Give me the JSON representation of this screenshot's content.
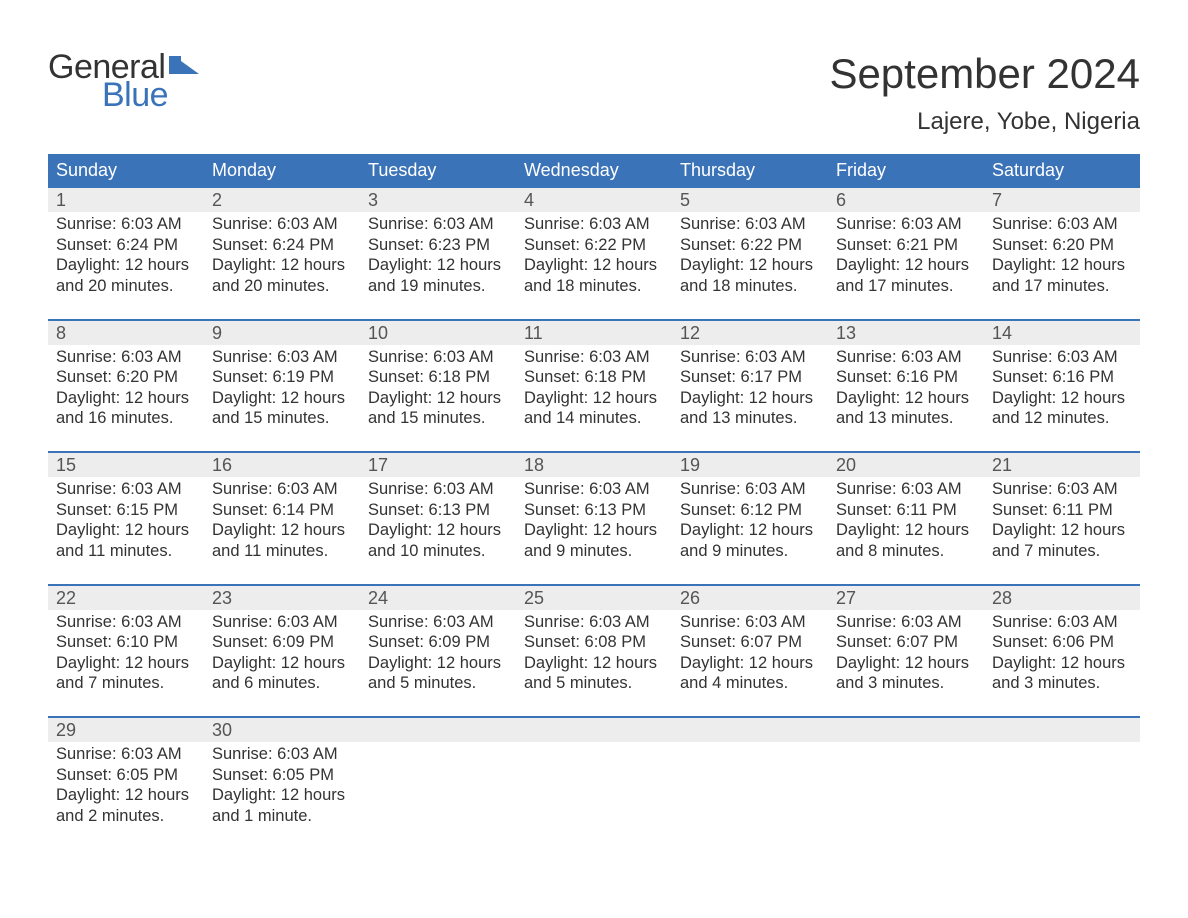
{
  "brand": {
    "word1": "General",
    "word2": "Blue",
    "word1_color": "#333333",
    "word2_color": "#3b73b9",
    "flag_color": "#3b73b9"
  },
  "title": {
    "month": "September 2024",
    "location": "Lajere, Yobe, Nigeria",
    "month_fontsize": 42,
    "location_fontsize": 24
  },
  "colors": {
    "header_bg": "#3b73b9",
    "header_text": "#ffffff",
    "week_rule": "#3b73b9",
    "daynum_bg": "#ededed",
    "daynum_text": "#555555",
    "body_text": "#333333",
    "background": "#ffffff"
  },
  "weekdays": [
    "Sunday",
    "Monday",
    "Tuesday",
    "Wednesday",
    "Thursday",
    "Friday",
    "Saturday"
  ],
  "weeks": [
    [
      {
        "n": "1",
        "sunrise": "Sunrise: 6:03 AM",
        "sunset": "Sunset: 6:24 PM",
        "d1": "Daylight: 12 hours",
        "d2": "and 20 minutes."
      },
      {
        "n": "2",
        "sunrise": "Sunrise: 6:03 AM",
        "sunset": "Sunset: 6:24 PM",
        "d1": "Daylight: 12 hours",
        "d2": "and 20 minutes."
      },
      {
        "n": "3",
        "sunrise": "Sunrise: 6:03 AM",
        "sunset": "Sunset: 6:23 PM",
        "d1": "Daylight: 12 hours",
        "d2": "and 19 minutes."
      },
      {
        "n": "4",
        "sunrise": "Sunrise: 6:03 AM",
        "sunset": "Sunset: 6:22 PM",
        "d1": "Daylight: 12 hours",
        "d2": "and 18 minutes."
      },
      {
        "n": "5",
        "sunrise": "Sunrise: 6:03 AM",
        "sunset": "Sunset: 6:22 PM",
        "d1": "Daylight: 12 hours",
        "d2": "and 18 minutes."
      },
      {
        "n": "6",
        "sunrise": "Sunrise: 6:03 AM",
        "sunset": "Sunset: 6:21 PM",
        "d1": "Daylight: 12 hours",
        "d2": "and 17 minutes."
      },
      {
        "n": "7",
        "sunrise": "Sunrise: 6:03 AM",
        "sunset": "Sunset: 6:20 PM",
        "d1": "Daylight: 12 hours",
        "d2": "and 17 minutes."
      }
    ],
    [
      {
        "n": "8",
        "sunrise": "Sunrise: 6:03 AM",
        "sunset": "Sunset: 6:20 PM",
        "d1": "Daylight: 12 hours",
        "d2": "and 16 minutes."
      },
      {
        "n": "9",
        "sunrise": "Sunrise: 6:03 AM",
        "sunset": "Sunset: 6:19 PM",
        "d1": "Daylight: 12 hours",
        "d2": "and 15 minutes."
      },
      {
        "n": "10",
        "sunrise": "Sunrise: 6:03 AM",
        "sunset": "Sunset: 6:18 PM",
        "d1": "Daylight: 12 hours",
        "d2": "and 15 minutes."
      },
      {
        "n": "11",
        "sunrise": "Sunrise: 6:03 AM",
        "sunset": "Sunset: 6:18 PM",
        "d1": "Daylight: 12 hours",
        "d2": "and 14 minutes."
      },
      {
        "n": "12",
        "sunrise": "Sunrise: 6:03 AM",
        "sunset": "Sunset: 6:17 PM",
        "d1": "Daylight: 12 hours",
        "d2": "and 13 minutes."
      },
      {
        "n": "13",
        "sunrise": "Sunrise: 6:03 AM",
        "sunset": "Sunset: 6:16 PM",
        "d1": "Daylight: 12 hours",
        "d2": "and 13 minutes."
      },
      {
        "n": "14",
        "sunrise": "Sunrise: 6:03 AM",
        "sunset": "Sunset: 6:16 PM",
        "d1": "Daylight: 12 hours",
        "d2": "and 12 minutes."
      }
    ],
    [
      {
        "n": "15",
        "sunrise": "Sunrise: 6:03 AM",
        "sunset": "Sunset: 6:15 PM",
        "d1": "Daylight: 12 hours",
        "d2": "and 11 minutes."
      },
      {
        "n": "16",
        "sunrise": "Sunrise: 6:03 AM",
        "sunset": "Sunset: 6:14 PM",
        "d1": "Daylight: 12 hours",
        "d2": "and 11 minutes."
      },
      {
        "n": "17",
        "sunrise": "Sunrise: 6:03 AM",
        "sunset": "Sunset: 6:13 PM",
        "d1": "Daylight: 12 hours",
        "d2": "and 10 minutes."
      },
      {
        "n": "18",
        "sunrise": "Sunrise: 6:03 AM",
        "sunset": "Sunset: 6:13 PM",
        "d1": "Daylight: 12 hours",
        "d2": "and 9 minutes."
      },
      {
        "n": "19",
        "sunrise": "Sunrise: 6:03 AM",
        "sunset": "Sunset: 6:12 PM",
        "d1": "Daylight: 12 hours",
        "d2": "and 9 minutes."
      },
      {
        "n": "20",
        "sunrise": "Sunrise: 6:03 AM",
        "sunset": "Sunset: 6:11 PM",
        "d1": "Daylight: 12 hours",
        "d2": "and 8 minutes."
      },
      {
        "n": "21",
        "sunrise": "Sunrise: 6:03 AM",
        "sunset": "Sunset: 6:11 PM",
        "d1": "Daylight: 12 hours",
        "d2": "and 7 minutes."
      }
    ],
    [
      {
        "n": "22",
        "sunrise": "Sunrise: 6:03 AM",
        "sunset": "Sunset: 6:10 PM",
        "d1": "Daylight: 12 hours",
        "d2": "and 7 minutes."
      },
      {
        "n": "23",
        "sunrise": "Sunrise: 6:03 AM",
        "sunset": "Sunset: 6:09 PM",
        "d1": "Daylight: 12 hours",
        "d2": "and 6 minutes."
      },
      {
        "n": "24",
        "sunrise": "Sunrise: 6:03 AM",
        "sunset": "Sunset: 6:09 PM",
        "d1": "Daylight: 12 hours",
        "d2": "and 5 minutes."
      },
      {
        "n": "25",
        "sunrise": "Sunrise: 6:03 AM",
        "sunset": "Sunset: 6:08 PM",
        "d1": "Daylight: 12 hours",
        "d2": "and 5 minutes."
      },
      {
        "n": "26",
        "sunrise": "Sunrise: 6:03 AM",
        "sunset": "Sunset: 6:07 PM",
        "d1": "Daylight: 12 hours",
        "d2": "and 4 minutes."
      },
      {
        "n": "27",
        "sunrise": "Sunrise: 6:03 AM",
        "sunset": "Sunset: 6:07 PM",
        "d1": "Daylight: 12 hours",
        "d2": "and 3 minutes."
      },
      {
        "n": "28",
        "sunrise": "Sunrise: 6:03 AM",
        "sunset": "Sunset: 6:06 PM",
        "d1": "Daylight: 12 hours",
        "d2": "and 3 minutes."
      }
    ],
    [
      {
        "n": "29",
        "sunrise": "Sunrise: 6:03 AM",
        "sunset": "Sunset: 6:05 PM",
        "d1": "Daylight: 12 hours",
        "d2": "and 2 minutes."
      },
      {
        "n": "30",
        "sunrise": "Sunrise: 6:03 AM",
        "sunset": "Sunset: 6:05 PM",
        "d1": "Daylight: 12 hours",
        "d2": "and 1 minute."
      },
      null,
      null,
      null,
      null,
      null
    ]
  ]
}
